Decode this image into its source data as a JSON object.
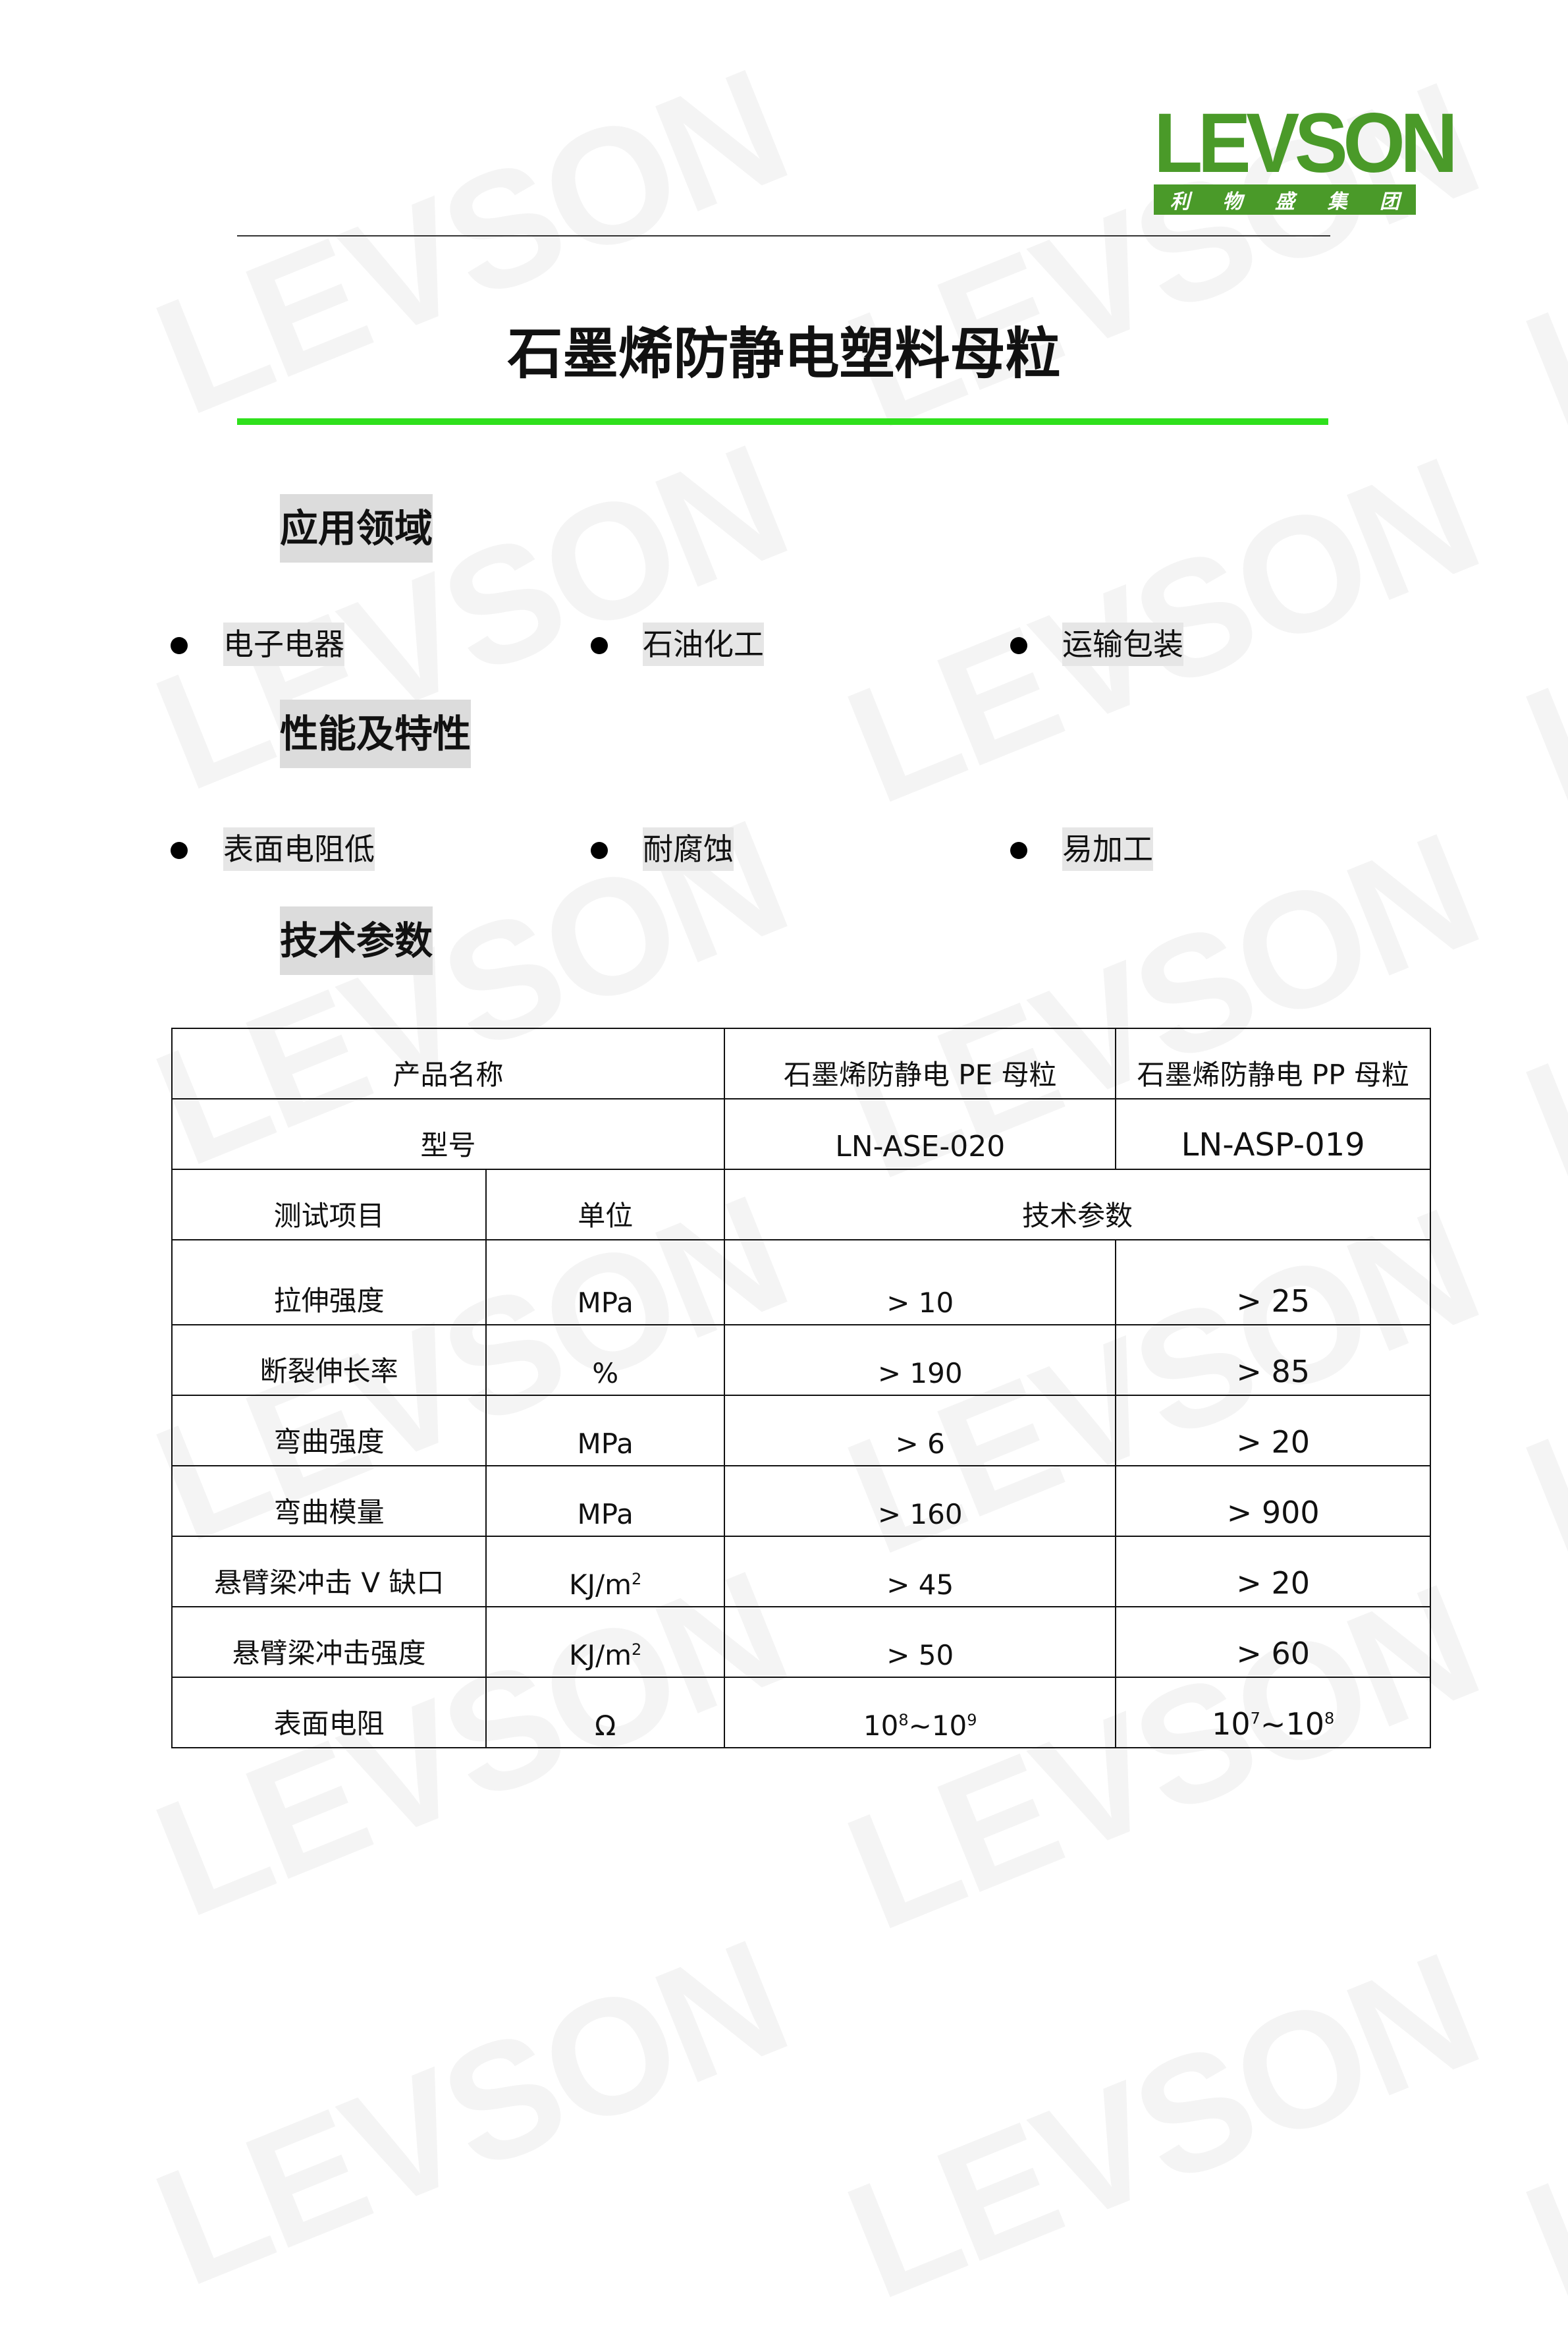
{
  "watermark": "LEVSON",
  "logo": {
    "name": "LEVSON",
    "subtitle_chars": [
      "利",
      "物",
      "盛",
      "集",
      "团"
    ],
    "color": "#4a9a29"
  },
  "title": "石墨烯防静电塑料母粒",
  "sections": [
    {
      "heading": "应用领域",
      "items": [
        "电子电器",
        "石油化工",
        "运输包装"
      ]
    },
    {
      "heading": "性能及特性",
      "items": [
        "表面电阻低",
        "耐腐蚀",
        "易加工"
      ]
    },
    {
      "heading": "技术参数"
    }
  ],
  "table": {
    "product_name_label": "产品名称",
    "products": [
      "石墨烯防静电 PE 母粒",
      "石墨烯防静电 PP 母粒"
    ],
    "model_label": "型号",
    "models": [
      "LN-ASE-020",
      "LN-ASP-019"
    ],
    "headers": [
      "测试项目",
      "单位",
      "技术参数"
    ],
    "rows": [
      {
        "item": "拉伸强度",
        "unit": "MPa",
        "pe": "> 10",
        "pp": "> 25"
      },
      {
        "item": "断裂伸长率",
        "unit": "%",
        "pe": "> 190",
        "pp": "> 85"
      },
      {
        "item": "弯曲强度",
        "unit": "MPa",
        "pe": "> 6",
        "pp": "> 20"
      },
      {
        "item": "弯曲模量",
        "unit": "MPa",
        "pe": "> 160",
        "pp": "> 900"
      },
      {
        "item": "悬臂梁冲击 V 缺口",
        "unit": "KJ/m",
        "unit_sup": "2",
        "pe": "> 45",
        "pp": "> 20"
      },
      {
        "item": "悬臂梁冲击强度",
        "unit": "KJ/m",
        "unit_sup": "2",
        "pe": "> 50",
        "pp": "> 60"
      }
    ],
    "last_row": {
      "item": "表面电阻",
      "unit": "Ω",
      "pe": {
        "base1": "10",
        "exp1": "8",
        "sep": "~",
        "base2": "10",
        "exp2": "9"
      },
      "pp": {
        "base1": "10",
        "exp1": "7",
        "sep": "~",
        "base2": "10",
        "exp2": "8"
      }
    }
  }
}
